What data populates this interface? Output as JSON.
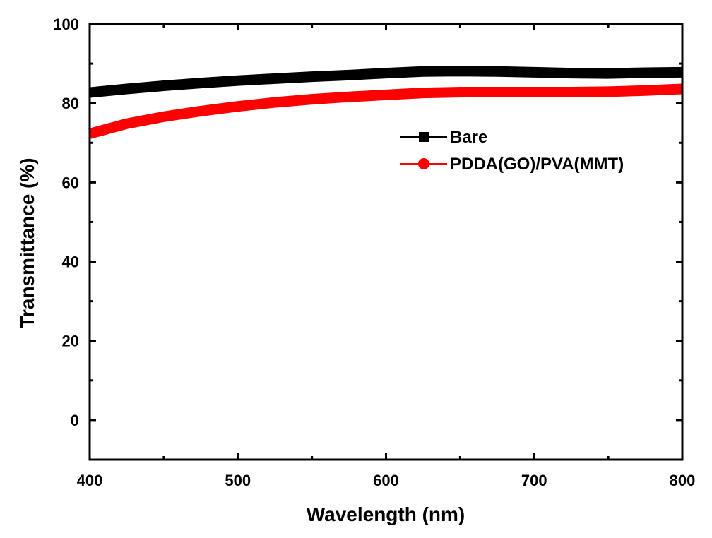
{
  "chart_data": {
    "type": "line",
    "title": "",
    "xlabel": "Wavelength (nm)",
    "ylabel": "Transmittance (%)",
    "xlim": [
      400,
      800
    ],
    "ylim": [
      -10,
      100
    ],
    "xticks": [
      400,
      500,
      600,
      700,
      800
    ],
    "yticks": [
      0,
      20,
      40,
      60,
      80,
      100
    ],
    "xtick_labels": [
      "400",
      "500",
      "600",
      "700",
      "800"
    ],
    "ytick_labels": [
      "0",
      "20",
      "40",
      "60",
      "80",
      "100"
    ],
    "grid": false,
    "legend_position": "upper-right",
    "series": [
      {
        "name": "Bare",
        "color": "#000000",
        "marker": "square",
        "x": [
          400,
          425,
          450,
          475,
          500,
          525,
          550,
          575,
          600,
          625,
          650,
          675,
          700,
          725,
          750,
          775,
          800
        ],
        "y": [
          82.7,
          83.6,
          84.4,
          85.1,
          85.7,
          86.2,
          86.7,
          87.1,
          87.6,
          88.0,
          88.1,
          88.0,
          87.8,
          87.6,
          87.5,
          87.7,
          87.8
        ]
      },
      {
        "name": "PDDA(GO)/PVA(MMT)",
        "color": "#ff0000",
        "marker": "circle",
        "x": [
          400,
          425,
          450,
          475,
          500,
          525,
          550,
          575,
          600,
          625,
          650,
          675,
          700,
          725,
          750,
          775,
          800
        ],
        "y": [
          72.3,
          74.8,
          76.6,
          78.0,
          79.2,
          80.2,
          81.0,
          81.6,
          82.1,
          82.6,
          82.8,
          82.8,
          82.8,
          82.8,
          82.9,
          83.2,
          83.6
        ]
      }
    ]
  }
}
